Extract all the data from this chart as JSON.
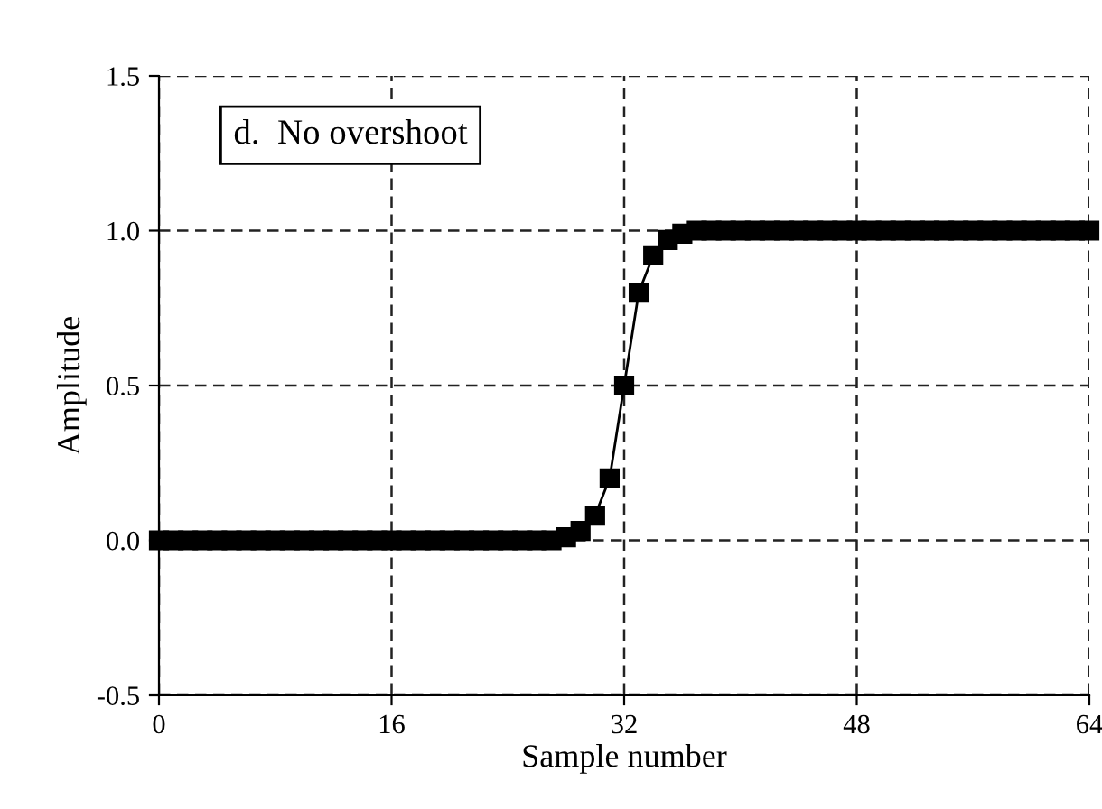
{
  "chart_data": {
    "type": "line",
    "xlabel": "Sample number",
    "ylabel": "Amplitude",
    "annotations": [
      "d.  No overshoot"
    ],
    "x": [
      0,
      1,
      2,
      3,
      4,
      5,
      6,
      7,
      8,
      9,
      10,
      11,
      12,
      13,
      14,
      15,
      16,
      17,
      18,
      19,
      20,
      21,
      22,
      23,
      24,
      25,
      26,
      27,
      28,
      29,
      30,
      31,
      32,
      33,
      34,
      35,
      36,
      37,
      38,
      39,
      40,
      41,
      42,
      43,
      44,
      45,
      46,
      47,
      48,
      49,
      50,
      51,
      52,
      53,
      54,
      55,
      56,
      57,
      58,
      59,
      60,
      61,
      62,
      63,
      64
    ],
    "series": [
      {
        "color": "#000000",
        "values": [
          0,
          0,
          0,
          0,
          0,
          0,
          0,
          0,
          0,
          0,
          0,
          0,
          0,
          0,
          0,
          0,
          0,
          0,
          0,
          0,
          0,
          0,
          0,
          0,
          0,
          0,
          0,
          0,
          0.01,
          0.03,
          0.08,
          0.2,
          0.5,
          0.8,
          0.92,
          0.97,
          0.99,
          1,
          1,
          1,
          1,
          1,
          1,
          1,
          1,
          1,
          1,
          1,
          1,
          1,
          1,
          1,
          1,
          1,
          1,
          1,
          1,
          1,
          1,
          1,
          1,
          1,
          1,
          1,
          1
        ]
      }
    ],
    "xlim": [
      0,
      64
    ],
    "ylim": [
      -0.5,
      1.5
    ],
    "xticks": [
      0,
      16,
      32,
      48,
      64
    ],
    "yticks": [
      {
        "value": -0.5,
        "label": "-0.5"
      },
      {
        "value": 0,
        "label": "0.0"
      },
      {
        "value": 0.5,
        "label": "0.5"
      },
      {
        "value": 1,
        "label": "1.0"
      },
      {
        "value": 1.5,
        "label": "1.5"
      }
    ],
    "grid": true,
    "marker": "square",
    "line_style": "solid"
  }
}
